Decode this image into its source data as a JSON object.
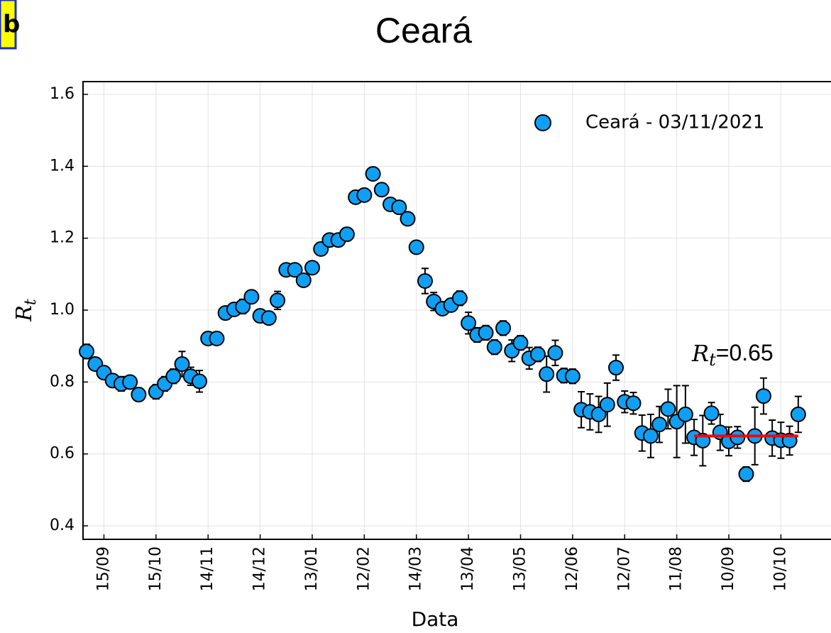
{
  "chart_data": {
    "type": "scatter",
    "panel_label": "b",
    "title": "Ceará",
    "xlabel": "Data",
    "ylabel": "R",
    "ylabel_sub": "t",
    "categories": [
      null,
      null,
      "15/09",
      null,
      null,
      null,
      null,
      null,
      "15/10",
      null,
      null,
      null,
      null,
      null,
      "14/11",
      null,
      null,
      null,
      null,
      null,
      "14/12",
      null,
      null,
      null,
      null,
      null,
      "13/01",
      null,
      null,
      null,
      null,
      null,
      "12/02",
      null,
      null,
      null,
      null,
      null,
      "14/03",
      null,
      null,
      null,
      null,
      null,
      "13/04",
      null,
      null,
      null,
      null,
      null,
      "13/05",
      null,
      null,
      null,
      null,
      null,
      "12/06",
      null,
      null,
      null,
      null,
      null,
      "12/07",
      null,
      null,
      null,
      null,
      null,
      "11/08",
      null,
      null,
      null,
      null,
      null,
      "10/09",
      null,
      null,
      null,
      null,
      null,
      "10/10",
      null,
      null
    ],
    "series": [
      {
        "name": "Ceará - 03/11/2021",
        "color": "#0fa0f5",
        "values": [
          0.885,
          0.85,
          0.826,
          0.804,
          0.795,
          0.8,
          0.765,
          null,
          0.773,
          0.795,
          0.816,
          0.85,
          0.816,
          0.802,
          0.921,
          0.921,
          0.992,
          1.002,
          1.01,
          1.037,
          0.984,
          0.978,
          1.027,
          1.112,
          1.112,
          1.083,
          1.118,
          1.17,
          1.195,
          1.195,
          1.211,
          1.314,
          1.32,
          1.379,
          1.335,
          1.294,
          1.286,
          1.254,
          1.175,
          1.081,
          1.024,
          1.004,
          1.014,
          1.033,
          0.964,
          0.931,
          0.937,
          0.897,
          0.95,
          0.887,
          0.909,
          0.866,
          0.877,
          0.822,
          0.881,
          0.818,
          0.816,
          0.723,
          0.717,
          0.71,
          0.737,
          0.84,
          0.745,
          0.741,
          0.658,
          0.65,
          0.682,
          0.725,
          0.69,
          0.71,
          0.646,
          0.637,
          0.713,
          0.66,
          0.635,
          0.646,
          0.544,
          0.65,
          0.761,
          0.644,
          0.638,
          0.637,
          0.71
        ],
        "errors": [
          0.02,
          0.015,
          0.015,
          0.015,
          0.02,
          0.015,
          0.015,
          null,
          0.02,
          0.02,
          0.02,
          0.035,
          0.025,
          0.03,
          0.015,
          0.015,
          0.015,
          0.015,
          0.02,
          0.015,
          0.015,
          0.015,
          0.025,
          0.015,
          0.015,
          0.015,
          0.015,
          0.015,
          0.015,
          0.015,
          0.015,
          0.015,
          0.015,
          0.015,
          0.015,
          0.015,
          0.015,
          0.015,
          0.015,
          0.035,
          0.025,
          0.015,
          0.015,
          0.02,
          0.03,
          0.02,
          0.02,
          0.02,
          0.02,
          0.03,
          0.02,
          0.03,
          0.02,
          0.05,
          0.035,
          0.02,
          0.02,
          0.05,
          0.05,
          0.05,
          0.06,
          0.035,
          0.03,
          0.03,
          0.05,
          0.06,
          0.05,
          0.055,
          0.1,
          0.08,
          0.05,
          0.07,
          0.03,
          0.05,
          0.04,
          0.03,
          0.02,
          0.08,
          0.05,
          0.05,
          0.05,
          0.04,
          0.05
        ]
      }
    ],
    "ylim": [
      0.3625,
      1.6355
    ],
    "yticks": [
      0.4,
      0.6,
      0.8,
      {
        "value": 1.0,
        "label": "1.0"
      },
      1.2,
      1.4,
      1.6
    ],
    "grid": true,
    "legend": "upper right",
    "fit": {
      "value": 0.65,
      "label": "=0.65",
      "label_main": "R",
      "label_sub": "t",
      "from": 70,
      "to": 82,
      "color": "#ff0000"
    }
  }
}
